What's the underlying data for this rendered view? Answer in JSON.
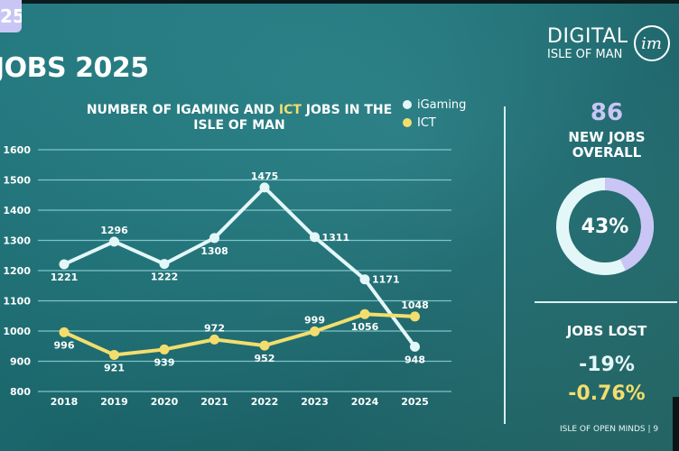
{
  "page": {
    "tab_number": "25",
    "title": "JOBS 2025",
    "logo": {
      "line1": "DIGITAL",
      "line2": "ISLE OF MAN",
      "badge": "im"
    },
    "footer": "ISLE OF OPEN MINDS  |  9"
  },
  "chart": {
    "title_part1": "NUMBER OF IGAMING AND ",
    "title_highlight": "ICT",
    "title_part2": " JOBS IN THE ISLE OF MAN",
    "legend": [
      {
        "label": "iGaming",
        "color": "#e4f7f8"
      },
      {
        "label": "ICT",
        "color": "#f3de6d"
      }
    ]
  },
  "stats": {
    "new_jobs_number": "86",
    "new_jobs_label_1": "NEW JOBS",
    "new_jobs_label_2": "OVERALL",
    "donut_percent_label": "43%",
    "donut_percent": 43,
    "donut_colors": {
      "filled": "#c9c6f5",
      "rest": "#e4f7f8"
    },
    "jobs_lost_label": "JOBS LOST",
    "jobs_lost_igaming": "-19%",
    "jobs_lost_ict": "-0.76%"
  },
  "chart_data": {
    "type": "line",
    "title": "NUMBER OF IGAMING AND ICT JOBS IN THE ISLE OF MAN",
    "xlabel": "",
    "ylabel": "",
    "categories": [
      "2018",
      "2019",
      "2020",
      "2021",
      "2022",
      "2023",
      "2024",
      "2025"
    ],
    "series": [
      {
        "name": "iGaming",
        "color": "#e4f7f8",
        "values": [
          1221,
          1296,
          1222,
          1308,
          1475,
          1311,
          1171,
          948
        ]
      },
      {
        "name": "ICT",
        "color": "#f3de6d",
        "values": [
          996,
          921,
          939,
          972,
          952,
          999,
          1056,
          1048
        ]
      }
    ],
    "ylim": [
      800,
      1600
    ],
    "yticks": [
      800,
      900,
      1000,
      1100,
      1200,
      1300,
      1400,
      1500,
      1600
    ],
    "grid": true,
    "legend_position": "top-right"
  }
}
